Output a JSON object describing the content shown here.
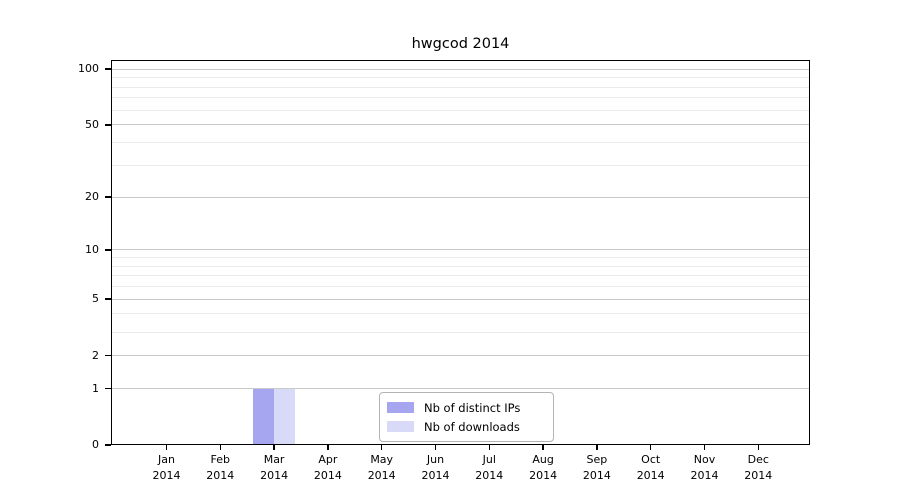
{
  "chart_data": {
    "type": "bar",
    "title": "hwgcod 2014",
    "categories": [
      {
        "month": "Jan",
        "year": "2014"
      },
      {
        "month": "Feb",
        "year": "2014"
      },
      {
        "month": "Mar",
        "year": "2014"
      },
      {
        "month": "Apr",
        "year": "2014"
      },
      {
        "month": "May",
        "year": "2014"
      },
      {
        "month": "Jun",
        "year": "2014"
      },
      {
        "month": "Jul",
        "year": "2014"
      },
      {
        "month": "Aug",
        "year": "2014"
      },
      {
        "month": "Sep",
        "year": "2014"
      },
      {
        "month": "Oct",
        "year": "2014"
      },
      {
        "month": "Nov",
        "year": "2014"
      },
      {
        "month": "Dec",
        "year": "2014"
      }
    ],
    "series": [
      {
        "name": "Nb of distinct IPs",
        "color": "#a6a6f0",
        "values": [
          0,
          0,
          1,
          0,
          0,
          0,
          0,
          0,
          0,
          0,
          0,
          0
        ]
      },
      {
        "name": "Nb of downloads",
        "color": "#d9d9f8",
        "values": [
          0,
          0,
          1,
          0,
          0,
          0,
          0,
          0,
          0,
          0,
          0,
          0
        ]
      }
    ],
    "yscale": "log1p",
    "yticks": [
      0,
      1,
      2,
      5,
      10,
      20,
      50,
      100
    ],
    "minor_gridlines": [
      3,
      4,
      6,
      7,
      8,
      9,
      30,
      40,
      60,
      70,
      80,
      90
    ],
    "ylim": [
      0,
      112
    ],
    "xlabel": "",
    "ylabel": "",
    "grid": true,
    "legend_position": "bottom-center-inside",
    "colors": {
      "major_grid": "#c9c9c9",
      "minor_grid": "#ebebeb",
      "axis": "#000000",
      "background": "#ffffff"
    }
  }
}
